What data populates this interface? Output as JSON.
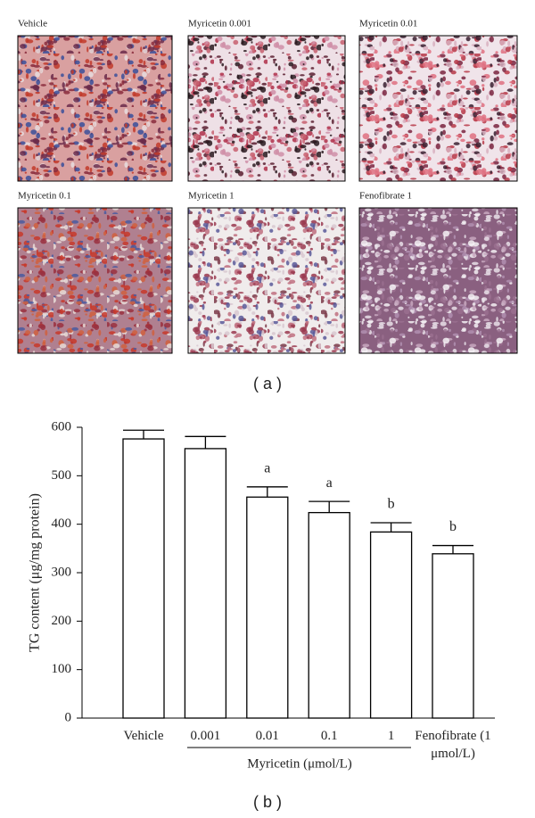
{
  "panel_a": {
    "label": "( a )",
    "images": [
      {
        "label": "Vehicle"
      },
      {
        "label": "Myricetin 0.001"
      },
      {
        "label": "Myricetin 0.01"
      },
      {
        "label": "Myricetin 0.1"
      },
      {
        "label": "Myricetin 1"
      },
      {
        "label": "Fenofibrate 1"
      }
    ]
  },
  "chart_data": {
    "type": "bar",
    "panel_label": "( b )",
    "y_label": "TG content (μg/mg protein)",
    "categories": [
      "Vehicle",
      "0.001",
      "0.01",
      "0.1",
      "1",
      "Fenofibrate (1 μmol/L)"
    ],
    "group_label": "Myricetin (μmol/L)",
    "values": [
      576,
      556,
      456,
      424,
      384,
      339
    ],
    "errors": [
      18,
      25,
      21,
      23,
      19,
      17
    ],
    "annotations": [
      null,
      null,
      "a",
      "a",
      "b",
      "b"
    ],
    "color": "#ffffff",
    "edge_color": "#000000",
    "ylim": [
      0,
      600
    ],
    "yticks": [
      0,
      100,
      200,
      300,
      400,
      500,
      600
    ]
  }
}
